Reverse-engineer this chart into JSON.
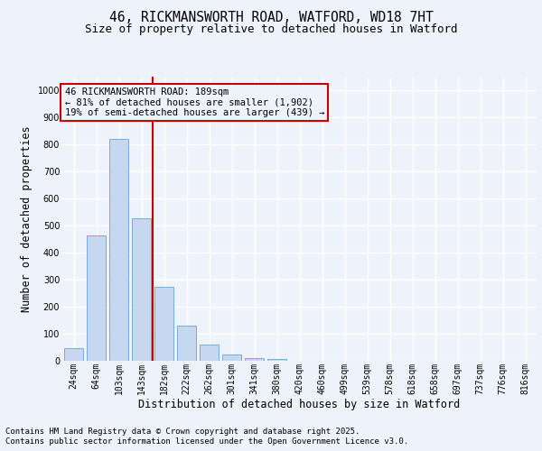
{
  "title_line1": "46, RICKMANSWORTH ROAD, WATFORD, WD18 7HT",
  "title_line2": "Size of property relative to detached houses in Watford",
  "xlabel": "Distribution of detached houses by size in Watford",
  "ylabel": "Number of detached properties",
  "categories": [
    "24sqm",
    "64sqm",
    "103sqm",
    "143sqm",
    "182sqm",
    "222sqm",
    "262sqm",
    "301sqm",
    "341sqm",
    "380sqm",
    "420sqm",
    "460sqm",
    "499sqm",
    "539sqm",
    "578sqm",
    "618sqm",
    "658sqm",
    "697sqm",
    "737sqm",
    "776sqm",
    "816sqm"
  ],
  "values": [
    47,
    465,
    820,
    525,
    275,
    130,
    60,
    22,
    10,
    8,
    1,
    0,
    0,
    0,
    0,
    0,
    0,
    0,
    0,
    0,
    0
  ],
  "bar_color": "#c5d8f0",
  "bar_edge_color": "#7aadd4",
  "vline_x": 3.5,
  "vline_color": "#cc0000",
  "annotation_text": "46 RICKMANSWORTH ROAD: 189sqm\n← 81% of detached houses are smaller (1,902)\n19% of semi-detached houses are larger (439) →",
  "annotation_box_edgecolor": "#cc0000",
  "annotation_box_facecolor": "#eef3fb",
  "ylim": [
    0,
    1050
  ],
  "yticks": [
    0,
    100,
    200,
    300,
    400,
    500,
    600,
    700,
    800,
    900,
    1000
  ],
  "bg_color": "#eef3fb",
  "grid_color": "#ffffff",
  "title_fontsize": 10.5,
  "subtitle_fontsize": 9,
  "axis_label_fontsize": 8.5,
  "tick_fontsize": 7,
  "annotation_fontsize": 7.5,
  "footer_fontsize": 6.5,
  "footer_line1": "Contains HM Land Registry data © Crown copyright and database right 2025.",
  "footer_line2": "Contains public sector information licensed under the Open Government Licence v3.0."
}
